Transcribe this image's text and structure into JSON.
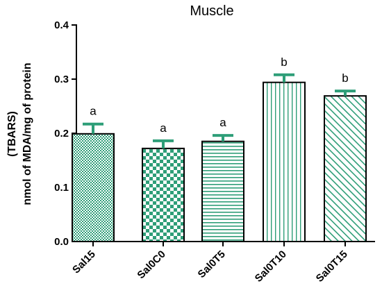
{
  "chart_data": {
    "type": "bar",
    "title": "Muscle",
    "ylabel_lines": [
      "(TBARS)",
      "nmol of MDA/mg of protein"
    ],
    "xlabel": "",
    "ylim": [
      0,
      0.4
    ],
    "yticks": [
      {
        "value": 0.0,
        "label": "0.0"
      },
      {
        "value": 0.1,
        "label": "0.1"
      },
      {
        "value": 0.2,
        "label": "0.2"
      },
      {
        "value": 0.3,
        "label": "0.3"
      },
      {
        "value": 0.4,
        "label": "0.4"
      }
    ],
    "grid": false,
    "bar_color": "#2e9e78",
    "categories": [
      "Sal15",
      "Sal0C0",
      "Sal0T5",
      "Sal0T10",
      "Sal0T15"
    ],
    "values": [
      0.199,
      0.172,
      0.185,
      0.294,
      0.269
    ],
    "errors": [
      0.018,
      0.014,
      0.011,
      0.014,
      0.009
    ],
    "significance": [
      "a",
      "a",
      "a",
      "b",
      "b"
    ],
    "patterns": [
      "fine-dots",
      "checker",
      "horizontal-lines",
      "vertical-lines",
      "diagonal-lines"
    ]
  }
}
